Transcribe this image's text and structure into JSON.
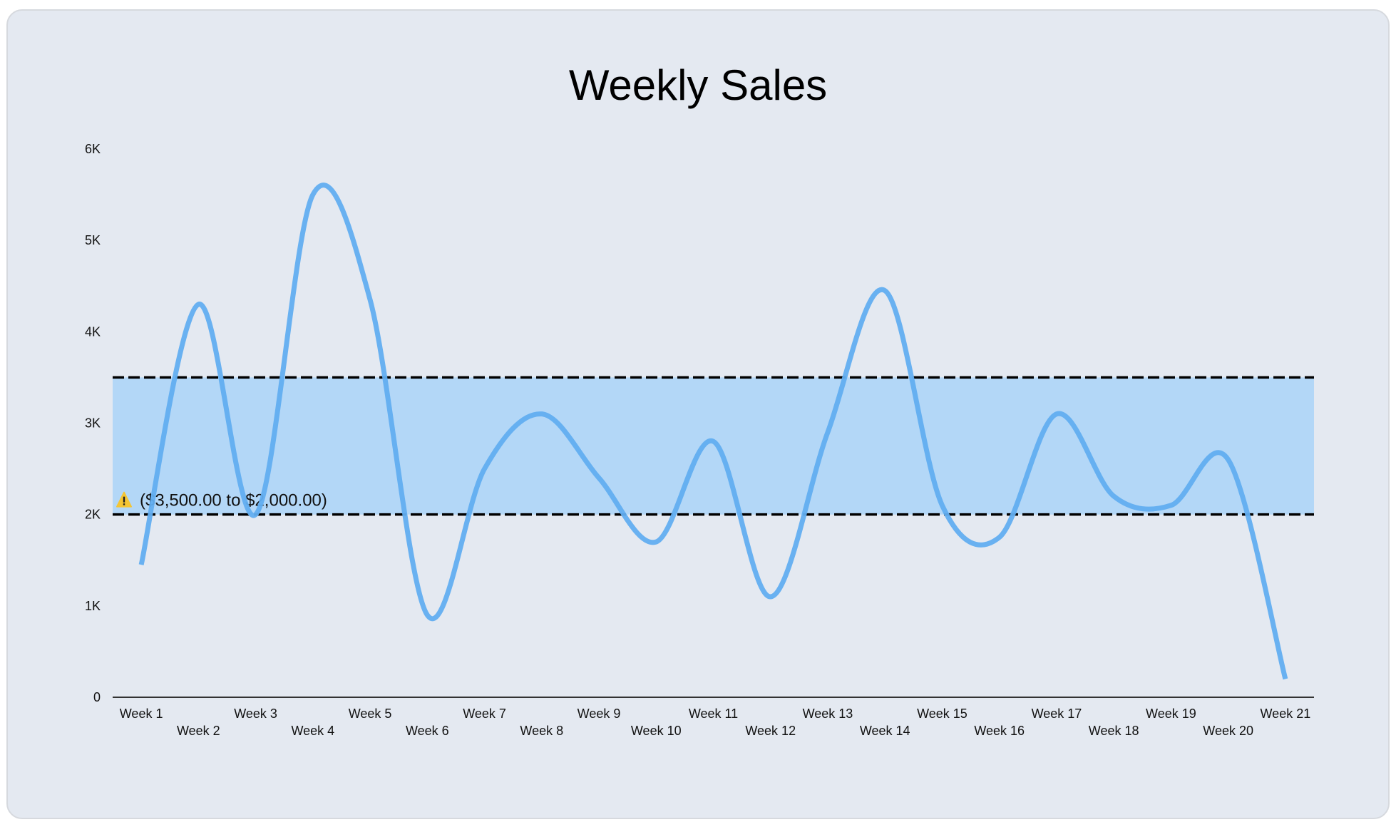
{
  "chart": {
    "title": "Weekly Sales"
  },
  "chart_data": {
    "type": "line",
    "title": "Weekly Sales",
    "xlabel": "",
    "ylabel": "",
    "categories": [
      "Week 1",
      "Week 2",
      "Week 3",
      "Week 4",
      "Week 5",
      "Week 6",
      "Week 7",
      "Week 8",
      "Week 9",
      "Week 10",
      "Week 11",
      "Week 12",
      "Week 13",
      "Week 14",
      "Week 15",
      "Week 16",
      "Week 17",
      "Week 18",
      "Week 19",
      "Week 20",
      "Week 21"
    ],
    "series": [
      {
        "name": "Sales",
        "color": "#62aef0",
        "values": [
          1450,
          4300,
          2000,
          5500,
          4350,
          900,
          2500,
          3100,
          2400,
          1700,
          2800,
          1100,
          2900,
          4450,
          2100,
          1750,
          3100,
          2200,
          2100,
          2600,
          200
        ]
      }
    ],
    "ylim": [
      0,
      6000
    ],
    "yticks": [
      0,
      1000,
      2000,
      3000,
      4000,
      5000,
      6000
    ],
    "ytick_labels": [
      "0",
      "1K",
      "2K",
      "3K",
      "4K",
      "5K",
      "6K"
    ],
    "grid": false,
    "legend": "none",
    "curve": "smooth",
    "reference_band": {
      "from": 2000,
      "to": 3500,
      "fill_color": "#b3d7f7",
      "line_color": "#000000",
      "line_style": "dashed",
      "label": "($3,500.00 to $2,000.00)",
      "label_icon": "warning-icon"
    }
  },
  "colors": {
    "background": "#e4e9f1",
    "line": "#62aef0",
    "band": "#b3d7f7",
    "warning": "#f4c534"
  }
}
